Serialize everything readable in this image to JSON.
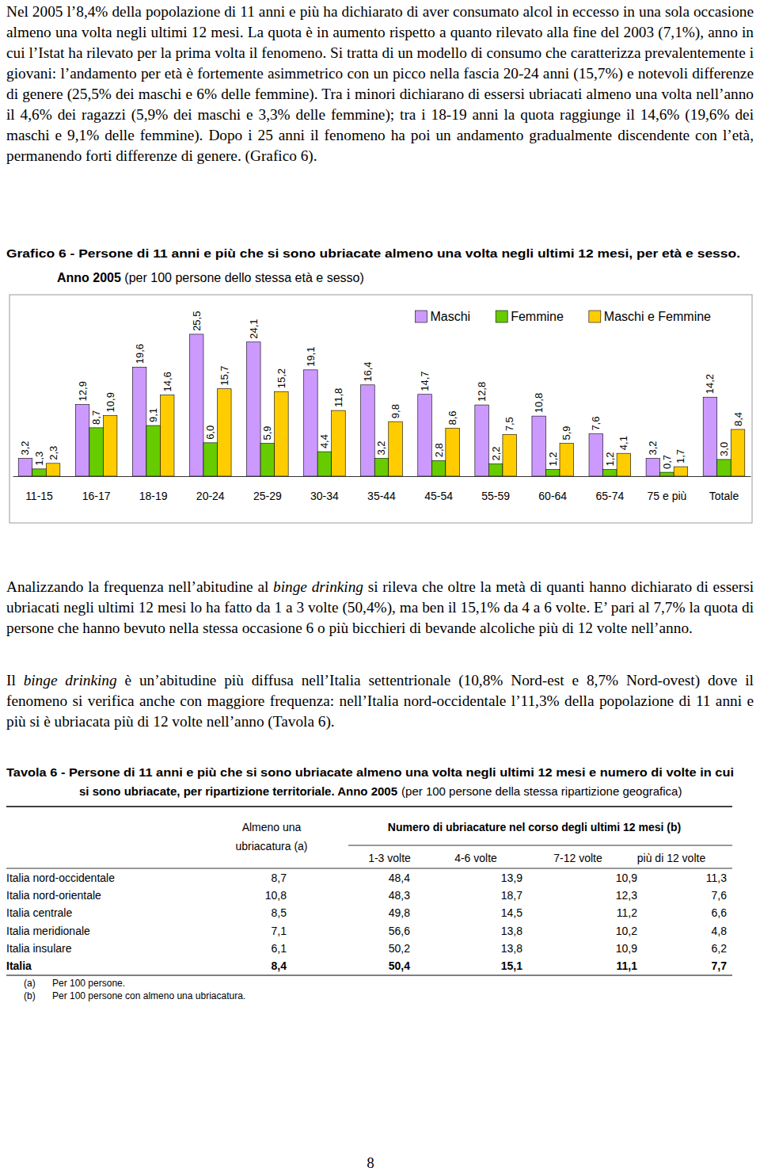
{
  "paragraphs": [
    [
      "Nel 2005 l’8,4% della popolazione di 11 anni e più ha dichiarato di aver consumato alcol in eccesso in una sola occasione almeno una volta negli ultimi 12 mesi. La quota è in aumento rispetto a quanto rilevato alla fine del 2003 (7,1%), anno in cui l’Istat ha rilevato per la prima volta il fenomeno. Si tratta di un modello di consumo che caratterizza prevalentemente i giovani: l’andamento per età è fortemente asimmetrico con un picco nella fascia 20-24 anni (15,7%) e notevoli differenze di genere (25,5% dei maschi e 6% delle femmine). Tra i minori dichiarano di essersi ubriacati almeno una volta nell’anno il 4,6% dei ragazzi (5,9% dei maschi e 3,3% delle femmine); tra i 18-19 anni la quota raggiunge il 14,6% (19,6% dei maschi e 9,1% delle femmine). Dopo i 25 anni il fenomeno ha poi un andamento gradualmente discendente con l’età, permanendo forti differenze di genere. (Grafico 6)."
    ],
    [
      "Analizzando la frequenza nell’abitudine al ",
      "binge drinking",
      " si rileva che oltre la metà di quanti hanno dichiarato di essersi ubriacati negli ultimi 12 mesi lo ha fatto da 1 a 3 volte (50,4%), ma ben il 15,1% da 4 a 6 volte. E’ pari al 7,7% la quota di persone che hanno bevuto nella stessa occasione 6 o più bicchieri di bevande alcoliche più di 12 volte nell’anno."
    ],
    [
      "Il ",
      "binge drinking",
      " è un’abitudine più diffusa nell’Italia settentrionale (10,8% Nord-est e 8,7% Nord-ovest) dove il fenomeno si verifica anche con maggiore frequenza: nell’Italia nord-occidentale l’11,3% della popolazione di 11 anni e più si è ubriacata più di 12 volte nell’anno (Tavola 6)."
    ]
  ],
  "chart_data": {
    "type": "bar",
    "title": "Grafico 6 - Persone di 11 anni e più che si sono ubriacate almeno una volta negli ultimi 12 mesi, per età e sesso.",
    "subtitle": "Anno 2005 (per 100 persone dello stessa età e sesso)",
    "categories": [
      "11-15",
      "16-17",
      "18-19",
      "20-24",
      "25-29",
      "30-34",
      "35-44",
      "45-54",
      "55-59",
      "60-64",
      "65-74",
      "75 e più",
      "Totale"
    ],
    "series": [
      {
        "name": "Maschi",
        "color": "#cc99ff",
        "values": [
          3.2,
          12.9,
          19.6,
          25.5,
          24.1,
          19.1,
          16.4,
          14.7,
          12.8,
          10.8,
          7.6,
          3.2,
          14.2
        ],
        "value_labels": [
          "3,2",
          "12,9",
          "19,6",
          "25,5",
          "24,1",
          "19,1",
          "16,4",
          "14,7",
          "12,8",
          "10,8",
          "7,6",
          "3,2",
          "14,2"
        ]
      },
      {
        "name": "Femmine",
        "color": "#66cc00",
        "values": [
          1.3,
          8.7,
          9.1,
          6.0,
          5.9,
          4.4,
          3.2,
          2.8,
          2.2,
          1.2,
          1.2,
          0.7,
          3.0
        ],
        "value_labels": [
          "1,3",
          "8,7",
          "9,1",
          "6,0",
          "5,9",
          "4,4",
          "3,2",
          "2,8",
          "2,2",
          "1,2",
          "1,2",
          "0,7",
          "3,0"
        ]
      },
      {
        "name": "Maschi e Femmine",
        "color": "#ffcc00",
        "values": [
          2.3,
          10.9,
          14.6,
          15.7,
          15.2,
          11.8,
          9.8,
          8.6,
          7.5,
          5.9,
          4.1,
          1.7,
          8.4
        ],
        "value_labels": [
          "2,3",
          "10,9",
          "14,6",
          "15,7",
          "15,2",
          "11,8",
          "9,8",
          "8,6",
          "7,5",
          "5,9",
          "4,1",
          "1,7",
          "8,4"
        ]
      }
    ],
    "ylim": [
      0,
      32.6
    ],
    "tick_labels": "x",
    "data_labels": true,
    "legend": "top-right",
    "grid": false
  },
  "table": {
    "title": [
      "Tavola 6 - Persone di 11 anni e più che si sono ubriacate almeno una volta negli ultimi 12 mesi e numero di volte in cui",
      "si sono ubriacate, per ripartizione territoriale. Anno 2005",
      "(per 100 persone della stessa ripartizione geografica)"
    ],
    "first_header": [
      "Almeno una",
      "ubriacatura (a)"
    ],
    "group_header": "Numero di ubriacature nel corso degli ultimi 12 mesi (b)",
    "sub_headers": [
      "1-3 volte",
      "4-6 volte",
      "7-12 volte",
      "più di 12 volte"
    ],
    "rows": [
      [
        "Italia nord-occidentale",
        "8,7",
        "48,4",
        "13,9",
        "10,9",
        "11,3"
      ],
      [
        "Italia nord-orientale",
        "10,8",
        "48,3",
        "18,7",
        "12,3",
        "7,6"
      ],
      [
        "Italia centrale",
        "8,5",
        "49,8",
        "14,5",
        "11,2",
        "6,6"
      ],
      [
        "Italia meridionale",
        "7,1",
        "56,6",
        "13,8",
        "10,2",
        "4,8"
      ],
      [
        "Italia insulare",
        "6,1",
        "50,2",
        "13,8",
        "10,9",
        "6,2"
      ],
      [
        "Italia",
        "8,4",
        "50,4",
        "15,1",
        "11,1",
        "7,7"
      ]
    ],
    "notes": [
      [
        "(a)",
        "Per 100 persone."
      ],
      [
        "(b)",
        "Per 100 persone con almeno una ubriacatura."
      ]
    ]
  },
  "page_number": "8"
}
